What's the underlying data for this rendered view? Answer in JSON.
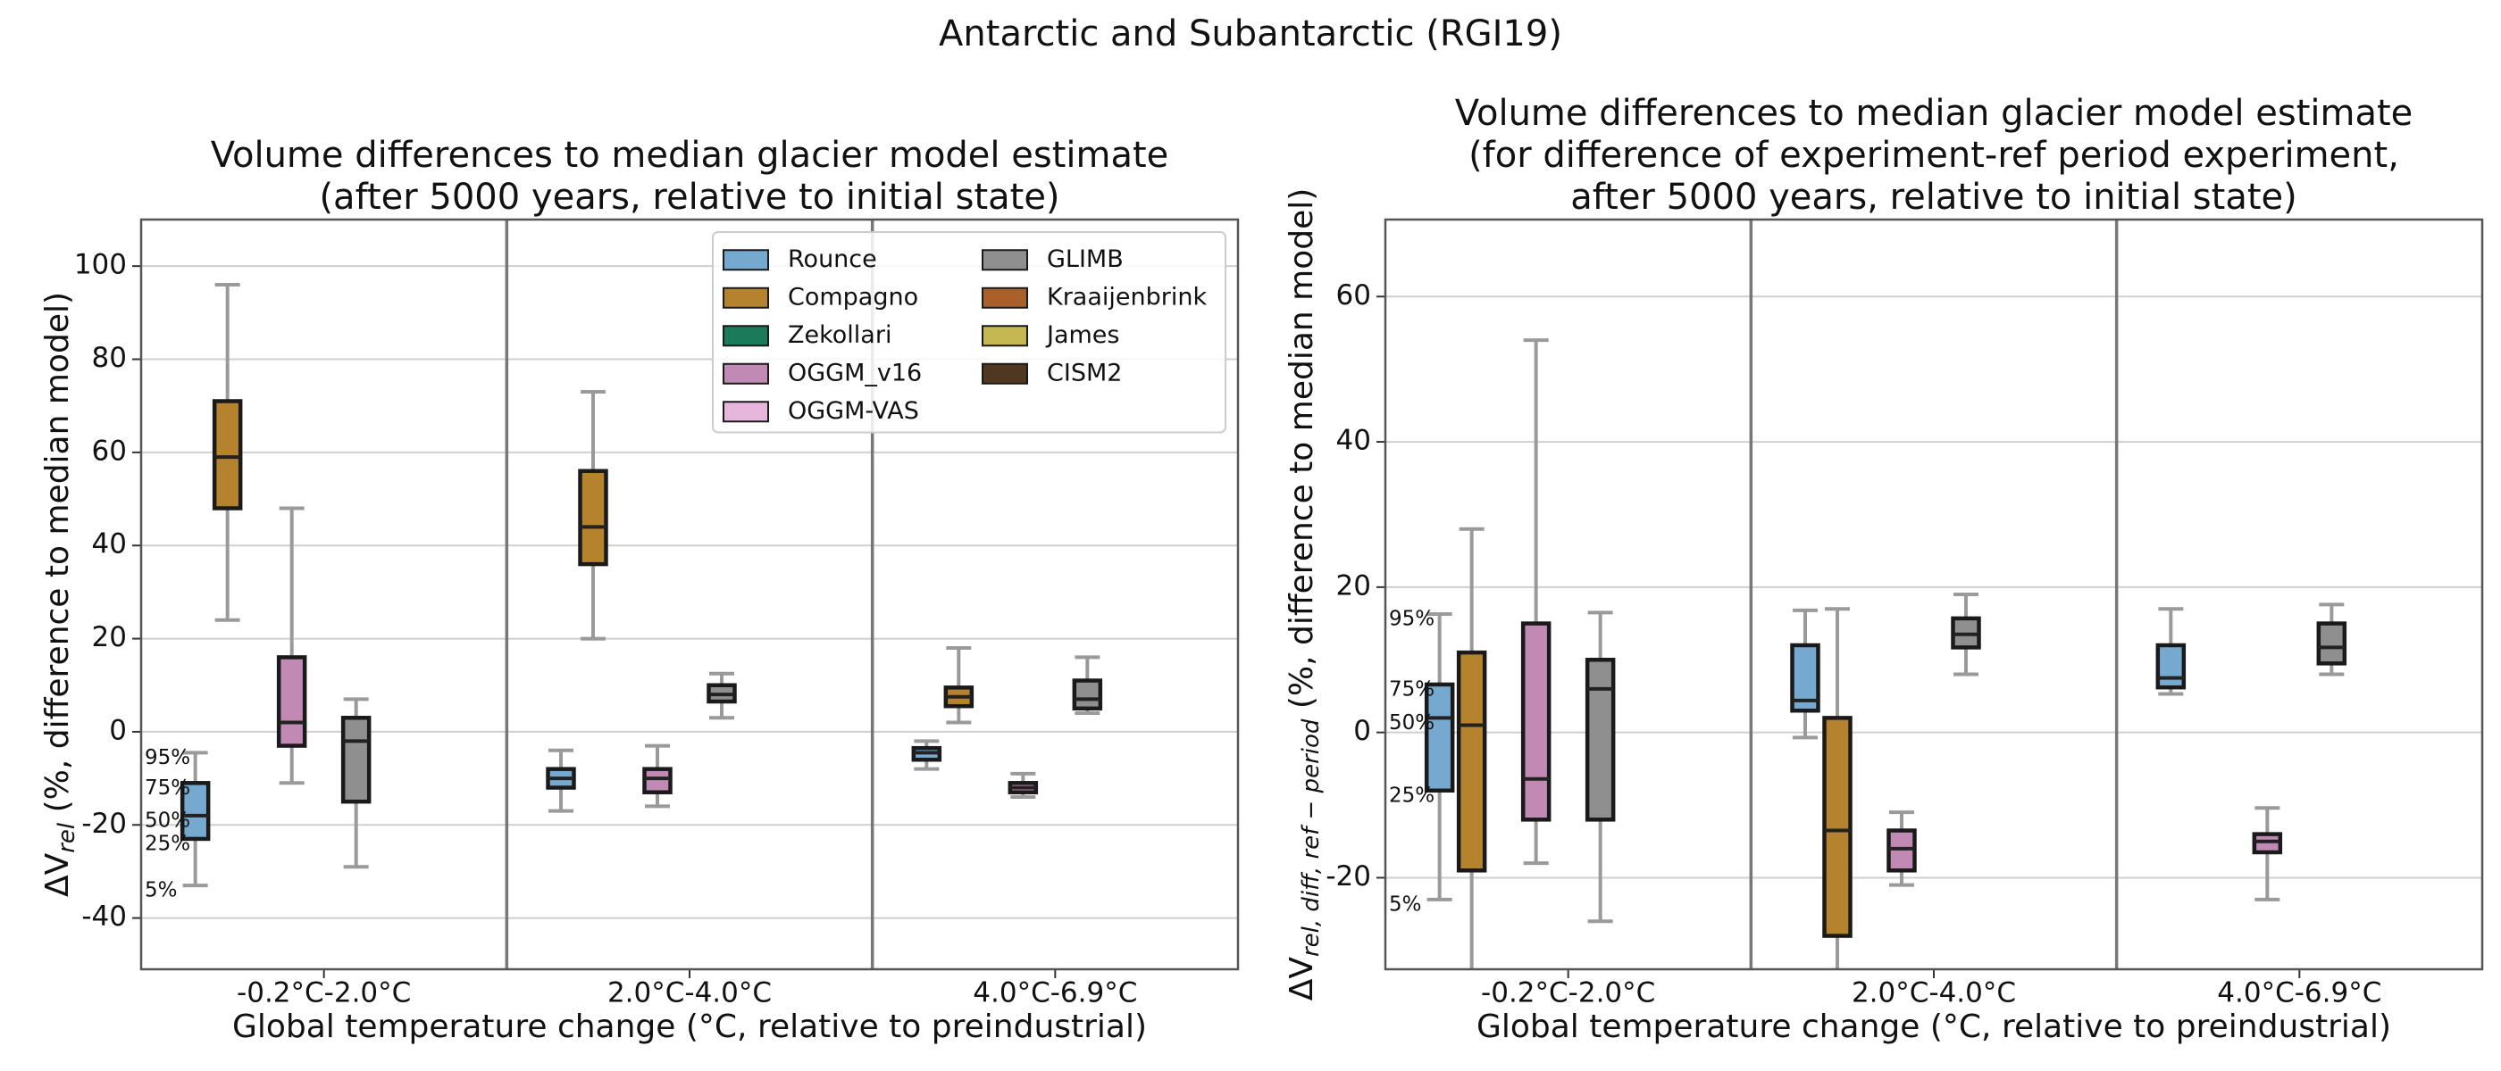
{
  "title": "Antarctic and Subantarctic (RGI19)",
  "chart_data": [
    {
      "type": "box",
      "title": [
        "Volume differences to median glacier model estimate",
        "(after 5000 years, relative to initial state)"
      ],
      "xlabel": "Global temperature change (°C, relative to preindustrial)",
      "ylabel": [
        "ΔV",
        "rel",
        " (%, difference to median model)"
      ],
      "categories": [
        "-0.2°C-2.0°C",
        "2.0°C-4.0°C",
        "4.0°C-6.9°C"
      ],
      "ylim": [
        -51,
        110
      ],
      "yticks": [
        -40,
        -20,
        0,
        20,
        40,
        60,
        80,
        100
      ],
      "grid": true,
      "legend": "upper right",
      "percentile_labels": [
        "5%",
        "25%",
        "50%",
        "75%",
        "95%"
      ],
      "series": [
        {
          "name": "Rounce",
          "color": "#76a9cf",
          "values": [
            [
              -33,
              -23,
              -18,
              -11,
              -4.5
            ],
            [
              -17,
              -12,
              -10,
              -8,
              -4
            ],
            [
              -8,
              -6,
              -4.5,
              -3.5,
              -2
            ]
          ]
        },
        {
          "name": "Compagno",
          "color": "#b5832e",
          "values": [
            [
              24,
              48,
              59,
              71,
              96
            ],
            [
              20,
              36,
              44,
              56,
              73
            ],
            [
              2,
              5.5,
              7.5,
              9.5,
              18
            ]
          ]
        },
        {
          "name": "Zekollari",
          "color": "#1b7a5a",
          "values": [
            null,
            null,
            null
          ]
        },
        {
          "name": "OGGM_v16",
          "color": "#c08ab4",
          "values": [
            [
              -11,
              -3,
              2,
              16,
              48
            ],
            [
              -16,
              -13,
              -10,
              -8,
              -3
            ],
            [
              -14,
              -13,
              -12,
              -11,
              -9
            ]
          ]
        },
        {
          "name": "OGGM-VAS",
          "color": "#e7b6dc",
          "values": [
            null,
            null,
            null
          ]
        },
        {
          "name": "GLIMB",
          "color": "#8f8f8f",
          "values": [
            [
              -29,
              -15,
              -2,
              3,
              7
            ],
            [
              3,
              6.5,
              8,
              10,
              12.5
            ],
            [
              4,
              5,
              7,
              11,
              16
            ]
          ]
        },
        {
          "name": "Kraaijenbrink",
          "color": "#a9602b",
          "values": [
            null,
            null,
            null
          ]
        },
        {
          "name": "James",
          "color": "#c5b853",
          "values": [
            null,
            null,
            null
          ]
        },
        {
          "name": "CISM2",
          "color": "#4f3720",
          "values": [
            null,
            null,
            null
          ]
        }
      ]
    },
    {
      "type": "box",
      "title": [
        "Volume differences to median glacier model estimate",
        "(for difference of experiment-ref period experiment,",
        "after 5000 years, relative to initial state)"
      ],
      "xlabel": "Global temperature change (°C, relative to preindustrial)",
      "ylabel": [
        "ΔV",
        "rel, diff, ref − period",
        " (%, difference to median model)"
      ],
      "categories": [
        "-0.2°C-2.0°C",
        "2.0°C-4.0°C",
        "4.0°C-6.9°C"
      ],
      "ylim": [
        -32.6,
        70.6
      ],
      "yticks": [
        -20,
        0,
        20,
        40,
        60
      ],
      "grid": true,
      "percentile_labels": [
        "5%",
        "25%",
        "50%",
        "75%",
        "95%"
      ],
      "series": [
        {
          "color": "#76a9cf",
          "values": [
            [
              -23,
              -8,
              2,
              6.6,
              16.3
            ],
            [
              -0.7,
              3,
              4.4,
              12,
              16.8
            ],
            [
              5.3,
              6.2,
              7.5,
              12,
              17
            ]
          ]
        },
        {
          "color": "#b5832e",
          "values": [
            [
              -34,
              -19,
              1,
              11,
              28
            ],
            [
              -35,
              -28,
              -13.5,
              2,
              17
            ],
            null
          ]
        },
        {
          "color": "#1b7a5a",
          "values": [
            null,
            null,
            null
          ]
        },
        {
          "color": "#c08ab4",
          "values": [
            [
              -18,
              -12,
              -6.4,
              15,
              54
            ],
            [
              -21,
              -19,
              -16,
              -13.5,
              -11
            ],
            [
              -23,
              -16.5,
              -15,
              -14,
              -10.4
            ]
          ]
        },
        {
          "color": "#e7b6dc",
          "values": [
            null,
            null,
            null
          ]
        },
        {
          "color": "#8f8f8f",
          "values": [
            [
              -26,
              -12,
              6,
              10,
              16.5
            ],
            [
              8,
              11.7,
              13.5,
              15.7,
              19
            ],
            [
              8,
              9.5,
              11.7,
              15,
              17.6
            ]
          ]
        },
        {
          "color": "#a9602b",
          "values": [
            null,
            null,
            null
          ]
        },
        {
          "color": "#c5b853",
          "values": [
            null,
            null,
            null
          ]
        },
        {
          "color": "#4f3720",
          "values": [
            null,
            null,
            null
          ]
        }
      ]
    }
  ]
}
